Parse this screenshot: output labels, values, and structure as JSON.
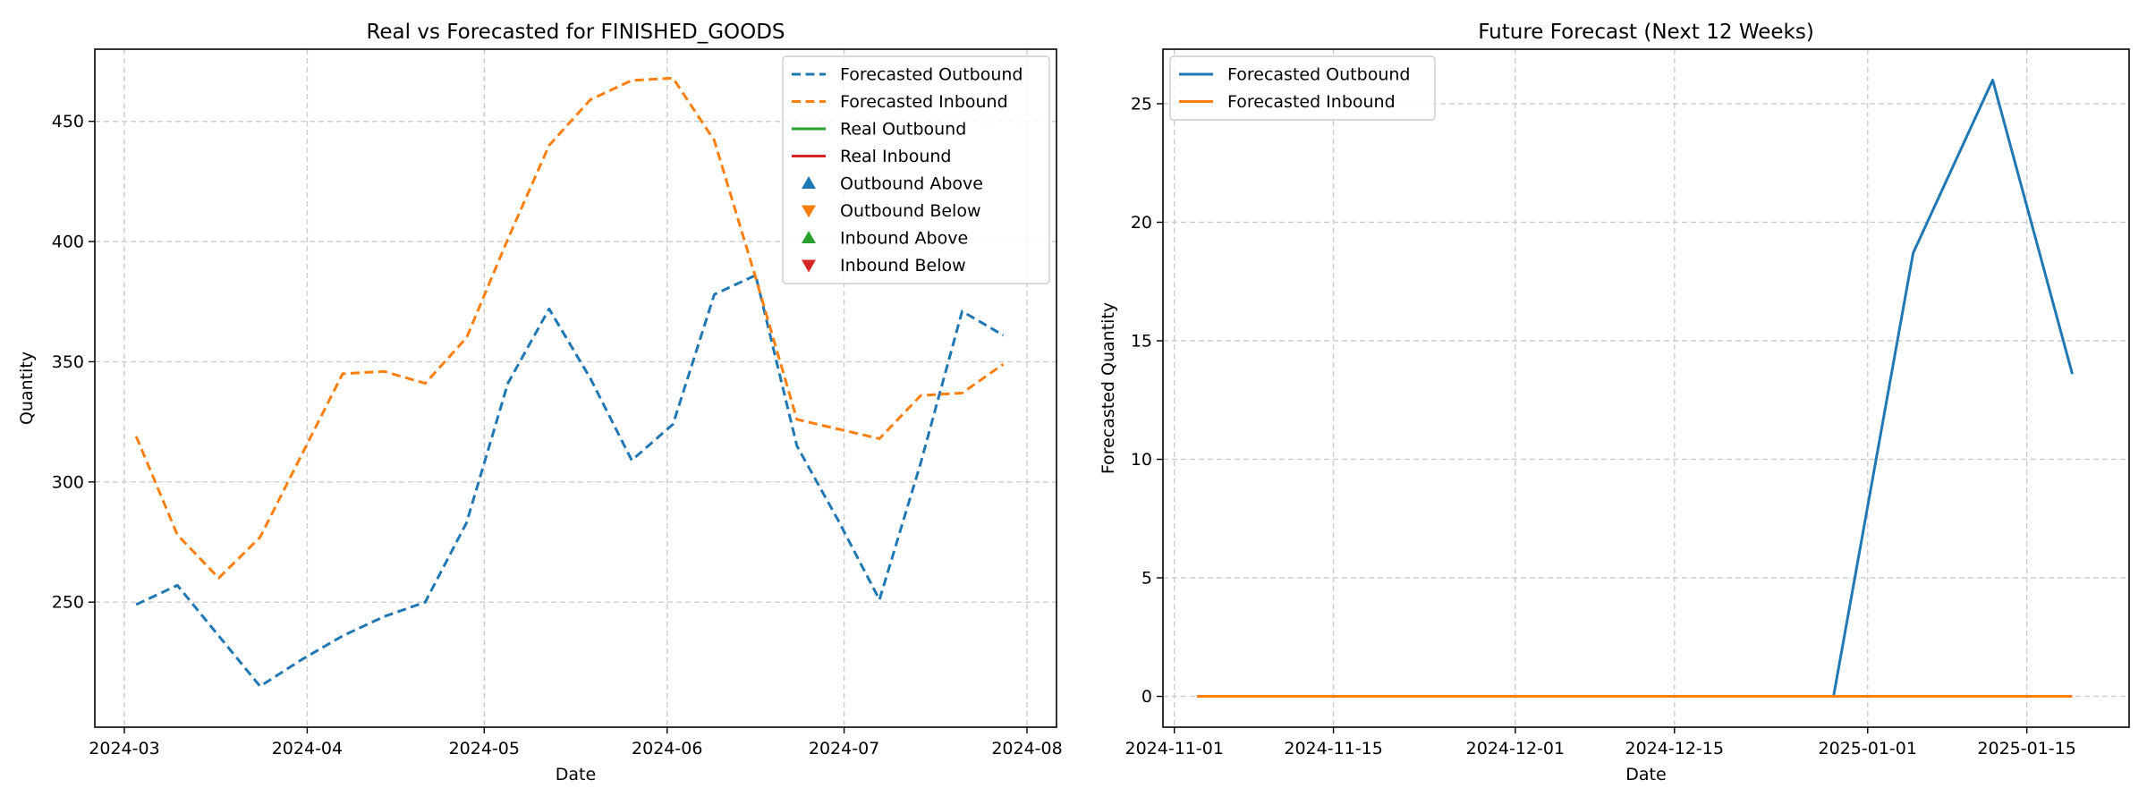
{
  "chart_data": [
    {
      "type": "line",
      "title": "Real vs Forecasted for FINISHED_GOODS",
      "xlabel": "Date",
      "ylabel": "Quantity",
      "x_axis_type": "date",
      "xlim": [
        "2024-02-25",
        "2024-08-06"
      ],
      "ylim": [
        198,
        480
      ],
      "xticks": [
        "2024-03-01",
        "2024-04-01",
        "2024-05-01",
        "2024-06-01",
        "2024-07-01",
        "2024-08-01"
      ],
      "xtick_labels": [
        "2024-03",
        "2024-04",
        "2024-05",
        "2024-06",
        "2024-07",
        "2024-08"
      ],
      "yticks": [
        250,
        300,
        350,
        400,
        450
      ],
      "grid": true,
      "legend_position": "top-right",
      "x": [
        "2024-03-03",
        "2024-03-10",
        "2024-03-17",
        "2024-03-24",
        "2024-03-31",
        "2024-04-07",
        "2024-04-14",
        "2024-04-21",
        "2024-04-28",
        "2024-05-05",
        "2024-05-12",
        "2024-05-19",
        "2024-05-26",
        "2024-06-02",
        "2024-06-09",
        "2024-06-16",
        "2024-06-23",
        "2024-06-30",
        "2024-07-07",
        "2024-07-14",
        "2024-07-21",
        "2024-07-28"
      ],
      "series": [
        {
          "name": "Forecasted Outbound",
          "color": "#1f77b4",
          "style": "dashed",
          "values": [
            249,
            257,
            236,
            215,
            226,
            236,
            244,
            250,
            283,
            341,
            372,
            343,
            309,
            324,
            378,
            386,
            315,
            284,
            251,
            308,
            371,
            361
          ]
        },
        {
          "name": "Forecasted Inbound",
          "color": "#ff7f0e",
          "style": "dashed",
          "values": [
            319,
            278,
            260,
            277,
            311,
            345,
            346,
            341,
            360,
            401,
            440,
            459,
            467,
            468,
            442,
            385,
            326,
            322,
            318,
            336,
            337,
            349
          ]
        }
      ],
      "legend": [
        {
          "label": "Forecasted Outbound",
          "kind": "dashed",
          "color": "#1f77b4"
        },
        {
          "label": "Forecasted Inbound",
          "kind": "dashed",
          "color": "#ff7f0e"
        },
        {
          "label": "Real Outbound",
          "kind": "solid",
          "color": "#2ca02c"
        },
        {
          "label": "Real Inbound",
          "kind": "solid",
          "color": "#d62728"
        },
        {
          "label": "Outbound Above",
          "kind": "triangle-up",
          "color": "#1f77b4"
        },
        {
          "label": "Outbound Below",
          "kind": "triangle-down",
          "color": "#ff7f0e"
        },
        {
          "label": "Inbound Above",
          "kind": "triangle-up",
          "color": "#2ca02c"
        },
        {
          "label": "Inbound Below",
          "kind": "triangle-down",
          "color": "#d62728"
        }
      ]
    },
    {
      "type": "line",
      "title": "Future Forecast (Next 12 Weeks)",
      "xlabel": "Date",
      "ylabel": "Forecasted Quantity",
      "x_axis_type": "date",
      "xlim": [
        "2024-10-31",
        "2025-01-24"
      ],
      "ylim": [
        -1.3,
        27.3
      ],
      "xticks": [
        "2024-11-01",
        "2024-11-15",
        "2024-12-01",
        "2024-12-15",
        "2025-01-01",
        "2025-01-15"
      ],
      "xtick_labels": [
        "2024-11-01",
        "2024-11-15",
        "2024-12-01",
        "2024-12-15",
        "2025-01-01",
        "2025-01-15"
      ],
      "yticks": [
        0,
        5,
        10,
        15,
        20,
        25
      ],
      "grid": true,
      "legend_position": "top-left",
      "x": [
        "2024-11-03",
        "2024-11-10",
        "2024-11-17",
        "2024-11-24",
        "2024-12-01",
        "2024-12-08",
        "2024-12-15",
        "2024-12-22",
        "2024-12-29",
        "2025-01-05",
        "2025-01-12",
        "2025-01-19"
      ],
      "series": [
        {
          "name": "Forecasted Outbound",
          "color": "#1f77b4",
          "style": "solid",
          "values": [
            0,
            0,
            0,
            0,
            0,
            0,
            0,
            0,
            0,
            18.7,
            26.0,
            13.6
          ]
        },
        {
          "name": "Forecasted Inbound",
          "color": "#ff7f0e",
          "style": "solid",
          "values": [
            0,
            0,
            0,
            0,
            0,
            0,
            0,
            0,
            0,
            0,
            0,
            0
          ]
        }
      ],
      "legend": [
        {
          "label": "Forecasted Outbound",
          "kind": "solid",
          "color": "#1f77b4"
        },
        {
          "label": "Forecasted Inbound",
          "kind": "solid",
          "color": "#ff7f0e"
        }
      ]
    }
  ]
}
